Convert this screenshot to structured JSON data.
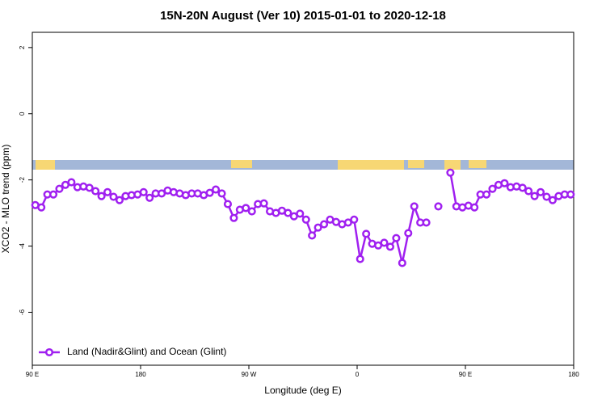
{
  "chart_data": {
    "type": "line",
    "title": "15N-20N August (Ver 10)   2015-01-01 to 2020-12-18",
    "xlabel": "Longitude (deg E)",
    "ylabel": "XCO2 - MLO trend (ppm)",
    "x": [
      92.5,
      97.5,
      102.5,
      107.5,
      112.5,
      117.5,
      122.5,
      127.5,
      132.5,
      137.5,
      142.5,
      147.5,
      152.5,
      157.5,
      162.5,
      167.5,
      172.5,
      177.5,
      182.5,
      187.5,
      192.5,
      197.5,
      202.5,
      207.5,
      212.5,
      217.5,
      222.5,
      227.5,
      232.5,
      237.5,
      242.5,
      247.5,
      252.5,
      257.5,
      262.5,
      267.5,
      272.5,
      277.5,
      282.5,
      287.5,
      292.5,
      297.5,
      302.5,
      307.5,
      312.5,
      317.5,
      322.5,
      327.5,
      332.5,
      337.5,
      342.5,
      347.5,
      352.5,
      357.5,
      362.5,
      367.5,
      372.5,
      377.5,
      382.5,
      387.5,
      392.5,
      397.5,
      402.5,
      407.5,
      412.5,
      417.5,
      422.5,
      427.5,
      432.5,
      437.5,
      442.5,
      447.5,
      452.5,
      457.5,
      462.5,
      467.5,
      472.5,
      477.5,
      482.5,
      487.5,
      492.5,
      497.5,
      502.5,
      507.5,
      512.5,
      517.5,
      522.5,
      527.5,
      532.5,
      537.5
    ],
    "series": [
      {
        "name": "Land (Nadir&Glint) and Ocean (Glint)",
        "color": "#a020f0",
        "values": [
          -2.76,
          -2.83,
          -2.44,
          -2.44,
          -2.27,
          -2.15,
          -2.07,
          -2.22,
          -2.2,
          -2.24,
          -2.34,
          -2.49,
          -2.37,
          -2.51,
          -2.61,
          -2.49,
          -2.46,
          -2.44,
          -2.37,
          -2.54,
          -2.41,
          -2.41,
          -2.32,
          -2.37,
          -2.41,
          -2.46,
          -2.41,
          -2.41,
          -2.46,
          -2.39,
          -2.29,
          -2.41,
          -2.73,
          -3.15,
          -2.9,
          -2.85,
          -2.95,
          -2.73,
          -2.71,
          -2.95,
          -3.0,
          -2.93,
          -3.0,
          -3.1,
          -3.02,
          -3.2,
          -3.68,
          -3.44,
          -3.34,
          -3.2,
          -3.27,
          -3.34,
          -3.29,
          -3.2,
          -4.39,
          -3.63,
          -3.93,
          -3.98,
          -3.9,
          -4.02,
          -3.76,
          -4.51,
          -3.61,
          -2.8,
          -3.29,
          -3.29,
          null,
          -2.8,
          null,
          -1.78,
          -2.8,
          -2.83,
          -2.78,
          -2.83,
          -2.44,
          -2.44,
          -2.27,
          -2.15,
          -2.1,
          -2.22,
          -2.2,
          -2.24,
          -2.34,
          -2.49,
          -2.37,
          -2.51,
          -2.61,
          -2.49,
          -2.44,
          -2.44
        ]
      }
    ],
    "xlim": [
      90,
      540
    ],
    "xticks": [
      {
        "value": 90,
        "label": "90 E"
      },
      180,
      {
        "value": 270,
        "label": "90 W"
      },
      {
        "value": 360,
        "label": "0"
      },
      {
        "value": 450,
        "label": "90 E"
      },
      {
        "value": 540,
        "label": "180"
      }
    ],
    "ylim": [
      -7.6,
      2.46
    ],
    "yticks": [
      -6,
      -4,
      -2,
      0,
      2
    ],
    "legend": "lower left"
  }
}
